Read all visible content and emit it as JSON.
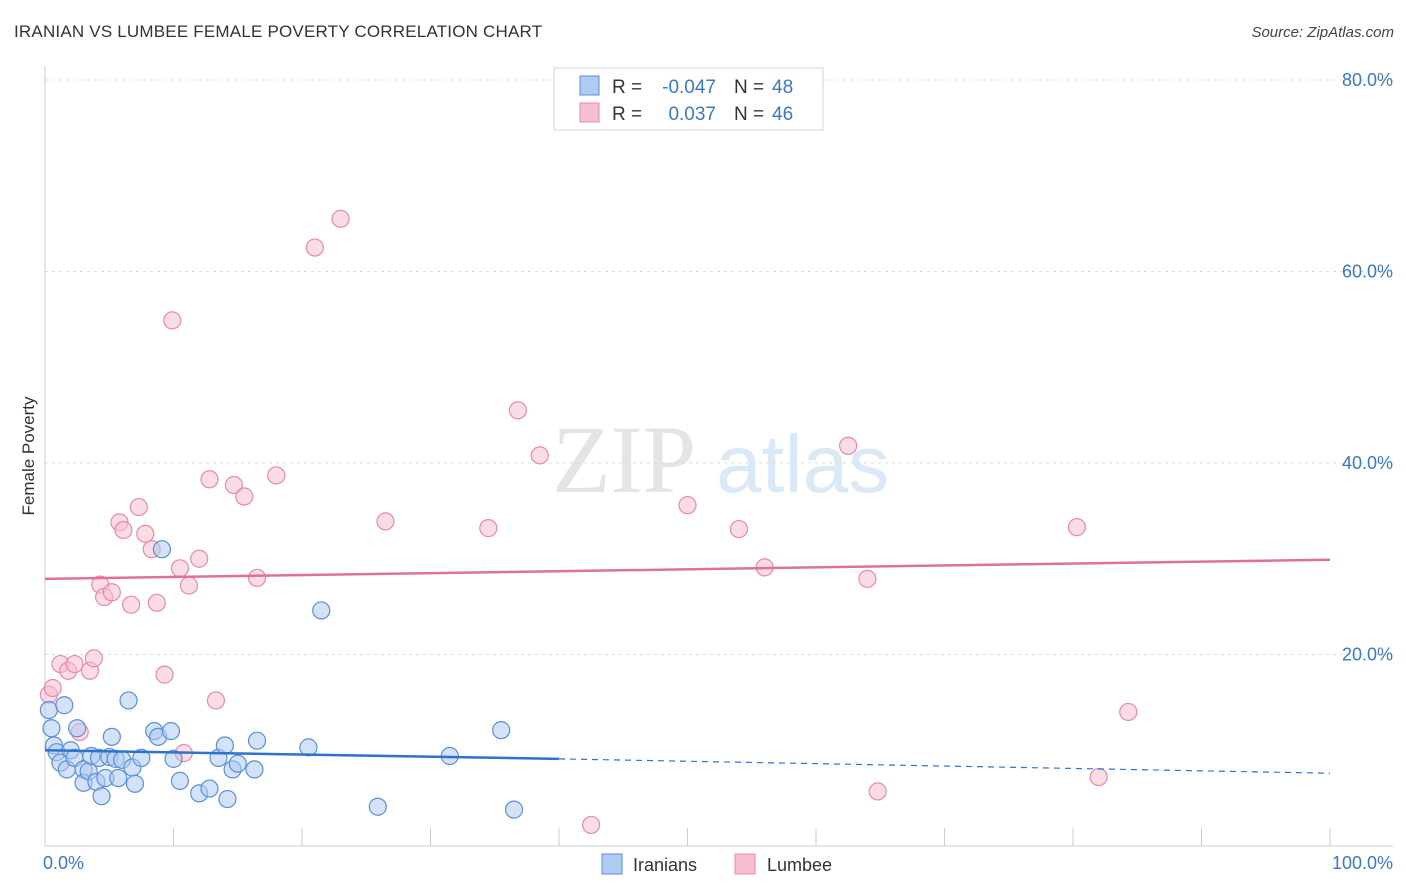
{
  "title": "IRANIAN VS LUMBEE FEMALE POVERTY CORRELATION CHART",
  "source": "Source: ZipAtlas.com",
  "watermark": {
    "zip": "ZIP",
    "atlas": "atlas"
  },
  "colors": {
    "iranians_fill": "#aecbf0",
    "iranians_stroke": "#5b8fd6",
    "iranians_line": "#2f72cc",
    "lumbee_fill": "#f6bfd0",
    "lumbee_stroke": "#e88aa8",
    "lumbee_line": "#e0709a",
    "accent_text": "#3a78c6",
    "grid": "#dddddd"
  },
  "legend": {
    "r_label": "R =",
    "n_label": "N =",
    "rows": [
      {
        "series": "Iranians",
        "r": "-0.047",
        "n": "48"
      },
      {
        "series": "Lumbee",
        "r": "0.037",
        "n": "46"
      }
    ]
  },
  "chart_data": {
    "type": "scatter",
    "title": "IRANIAN VS LUMBEE FEMALE POVERTY CORRELATION CHART",
    "xlabel": "",
    "ylabel": "Female Poverty",
    "xlim": [
      0,
      100
    ],
    "ylim": [
      0,
      80
    ],
    "x_tick_labels": [
      "0.0%",
      "100.0%"
    ],
    "y_ticks": [
      20,
      40,
      60,
      80
    ],
    "y_tick_labels": [
      "20.0%",
      "40.0%",
      "60.0%",
      "80.0%"
    ],
    "grid": true,
    "series": [
      {
        "name": "Iranians",
        "points": [
          [
            0.3,
            14.2
          ],
          [
            0.5,
            12.3
          ],
          [
            0.7,
            10.5
          ],
          [
            0.9,
            9.8
          ],
          [
            1.2,
            8.7
          ],
          [
            1.5,
            14.7
          ],
          [
            1.7,
            8.0
          ],
          [
            2.0,
            10.0
          ],
          [
            2.3,
            9.2
          ],
          [
            2.5,
            12.3
          ],
          [
            3.0,
            8.0
          ],
          [
            3.0,
            6.6
          ],
          [
            3.4,
            7.8
          ],
          [
            3.6,
            9.4
          ],
          [
            4.0,
            6.7
          ],
          [
            4.2,
            9.2
          ],
          [
            4.4,
            5.2
          ],
          [
            4.7,
            7.1
          ],
          [
            5.0,
            9.3
          ],
          [
            5.2,
            11.4
          ],
          [
            5.5,
            9.1
          ],
          [
            5.7,
            7.1
          ],
          [
            6.0,
            9.0
          ],
          [
            6.5,
            15.2
          ],
          [
            6.8,
            8.2
          ],
          [
            7.0,
            6.5
          ],
          [
            7.5,
            9.2
          ],
          [
            8.5,
            12.0
          ],
          [
            8.8,
            11.4
          ],
          [
            9.1,
            31.0
          ],
          [
            9.8,
            12.0
          ],
          [
            10.0,
            9.1
          ],
          [
            10.5,
            6.8
          ],
          [
            12.0,
            5.5
          ],
          [
            12.8,
            6.0
          ],
          [
            13.5,
            9.2
          ],
          [
            14.0,
            10.5
          ],
          [
            14.2,
            4.9
          ],
          [
            14.6,
            8.0
          ],
          [
            15.0,
            8.6
          ],
          [
            16.3,
            8.0
          ],
          [
            16.5,
            11.0
          ],
          [
            20.5,
            10.3
          ],
          [
            21.5,
            24.6
          ],
          [
            25.9,
            4.1
          ],
          [
            31.5,
            9.4
          ],
          [
            35.5,
            12.1
          ],
          [
            36.5,
            3.8
          ]
        ],
        "trend": {
          "x_start": 0,
          "y_start": 10.0,
          "x_solid_end": 40,
          "y_solid_end": 9.1,
          "x_end": 100,
          "y_end": 7.6
        }
      },
      {
        "name": "Lumbee",
        "points": [
          [
            0.3,
            15.8
          ],
          [
            0.6,
            16.5
          ],
          [
            1.2,
            19.0
          ],
          [
            1.8,
            18.3
          ],
          [
            2.3,
            19.0
          ],
          [
            2.7,
            11.9
          ],
          [
            3.5,
            18.3
          ],
          [
            3.8,
            19.6
          ],
          [
            4.3,
            27.3
          ],
          [
            4.6,
            26.0
          ],
          [
            5.2,
            26.5
          ],
          [
            5.8,
            33.8
          ],
          [
            6.1,
            33.0
          ],
          [
            6.7,
            25.2
          ],
          [
            7.3,
            35.4
          ],
          [
            7.8,
            32.6
          ],
          [
            8.3,
            31.0
          ],
          [
            8.7,
            25.4
          ],
          [
            9.3,
            17.9
          ],
          [
            9.9,
            54.9
          ],
          [
            10.5,
            29.0
          ],
          [
            10.8,
            9.7
          ],
          [
            11.2,
            27.2
          ],
          [
            12.0,
            30.0
          ],
          [
            12.8,
            38.3
          ],
          [
            13.3,
            15.2
          ],
          [
            14.7,
            37.7
          ],
          [
            15.5,
            36.5
          ],
          [
            16.5,
            28.0
          ],
          [
            18.0,
            38.7
          ],
          [
            21.0,
            62.5
          ],
          [
            23.0,
            65.5
          ],
          [
            26.5,
            33.9
          ],
          [
            34.5,
            33.2
          ],
          [
            36.8,
            45.5
          ],
          [
            38.5,
            40.8
          ],
          [
            42.5,
            2.2
          ],
          [
            50.0,
            35.6
          ],
          [
            54.0,
            33.1
          ],
          [
            56.0,
            29.1
          ],
          [
            62.5,
            41.8
          ],
          [
            64.0,
            27.9
          ],
          [
            64.8,
            5.7
          ],
          [
            80.3,
            33.3
          ],
          [
            82.0,
            7.2
          ],
          [
            84.3,
            14.0
          ]
        ],
        "trend": {
          "x_start": 0,
          "y_start": 27.9,
          "x_end": 100,
          "y_end": 29.9
        }
      }
    ]
  }
}
